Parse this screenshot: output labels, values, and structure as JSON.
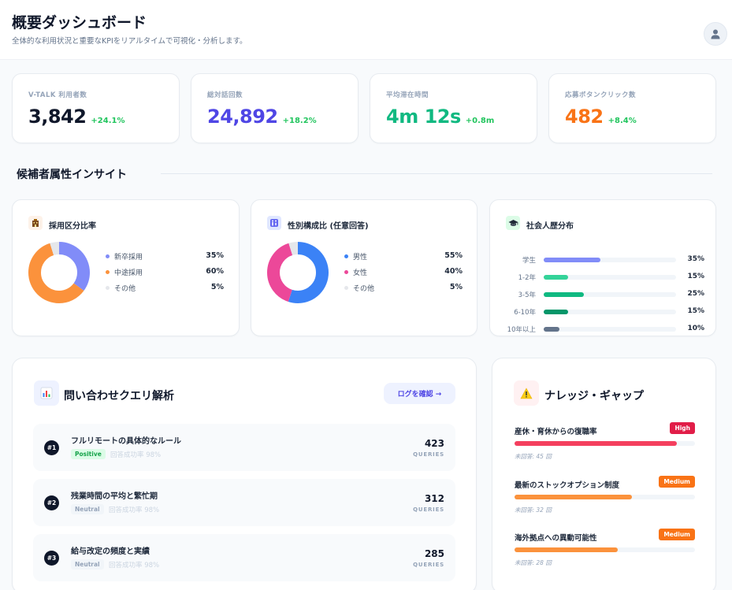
{
  "header": {
    "title": "概要ダッシュボード",
    "subtitle": "全体的な利用状況と重要なKPIをリアルタイムで可視化・分析します。",
    "avatar_icon": "user-icon"
  },
  "kpis": [
    {
      "label": "V-TALK 利用者数",
      "value": "3,842",
      "delta": "+24.1%",
      "color": "#0f172a"
    },
    {
      "label": "総対話回数",
      "value": "24,892",
      "delta": "+18.2%",
      "color": "#4f46e5"
    },
    {
      "label": "平均滞在時間",
      "value": "4m 12s",
      "delta": "+0.8m",
      "color": "#10b981"
    },
    {
      "label": "応募ボタンクリック数",
      "value": "482",
      "delta": "+8.4%",
      "color": "#f97316"
    }
  ],
  "section": {
    "title": "候補者属性インサイト"
  },
  "hiring": {
    "title": "採用区分比率",
    "icon": "building-icon",
    "items": [
      {
        "name": "新卒採用",
        "value": 35,
        "pct": "35%",
        "color": "#818cf8"
      },
      {
        "name": "中途採用",
        "value": 60,
        "pct": "60%",
        "color": "#fb923c"
      },
      {
        "name": "その他",
        "value": 5,
        "pct": "5%",
        "color": "#e5e7eb"
      }
    ]
  },
  "gender": {
    "title": "性別構成比 (任意回答)",
    "icon": "restroom-icon",
    "items": [
      {
        "name": "男性",
        "value": 55,
        "pct": "55%",
        "color": "#3b82f6"
      },
      {
        "name": "女性",
        "value": 40,
        "pct": "40%",
        "color": "#ec4899"
      },
      {
        "name": "その他",
        "value": 5,
        "pct": "5%",
        "color": "#e5e7eb"
      }
    ]
  },
  "career": {
    "title": "社会人歴分布",
    "icon": "graduation-cap-icon",
    "items": [
      {
        "label": "学生",
        "value": 35,
        "pct": "35%",
        "color": "#818cf8"
      },
      {
        "label": "1-2年",
        "value": 15,
        "pct": "15%",
        "color": "#34d399"
      },
      {
        "label": "3-5年",
        "value": 25,
        "pct": "25%",
        "color": "#10b981"
      },
      {
        "label": "6-10年",
        "value": 15,
        "pct": "15%",
        "color": "#059669"
      },
      {
        "label": "10年以上",
        "value": 10,
        "pct": "10%",
        "color": "#64748b"
      }
    ]
  },
  "queries": {
    "title": "問い合わせクエリ解析",
    "icon": "bar-chart-icon",
    "log_button": "ログを確認 →",
    "unit": "QUERIES",
    "items": [
      {
        "rank": "#1",
        "title": "フルリモートの具体的なルール",
        "tag": "Positive",
        "rate": "回答成功率 98%",
        "count": "423"
      },
      {
        "rank": "#2",
        "title": "残業時間の平均と繁忙期",
        "tag": "Neutral",
        "rate": "回答成功率 98%",
        "count": "312"
      },
      {
        "rank": "#3",
        "title": "給与改定の頻度と実績",
        "tag": "Neutral",
        "rate": "回答成功率 98%",
        "count": "285"
      }
    ]
  },
  "knowledge": {
    "title": "ナレッジ・ギャップ",
    "icon": "warning-icon",
    "items": [
      {
        "title": "産休・育休からの復職率",
        "badge": "High",
        "badge_color": "#e11d48",
        "fill_color": "#f43f5e",
        "level": 0.9,
        "sub": "未回答: 45 回"
      },
      {
        "title": "最新のストックオプション制度",
        "badge": "Medium",
        "badge_color": "#f97316",
        "fill_color": "#fb923c",
        "level": 0.65,
        "sub": "未回答: 32 回"
      },
      {
        "title": "海外拠点への異動可能性",
        "badge": "Medium",
        "badge_color": "#f97316",
        "fill_color": "#fb923c",
        "level": 0.57,
        "sub": "未回答: 28 回"
      }
    ]
  }
}
